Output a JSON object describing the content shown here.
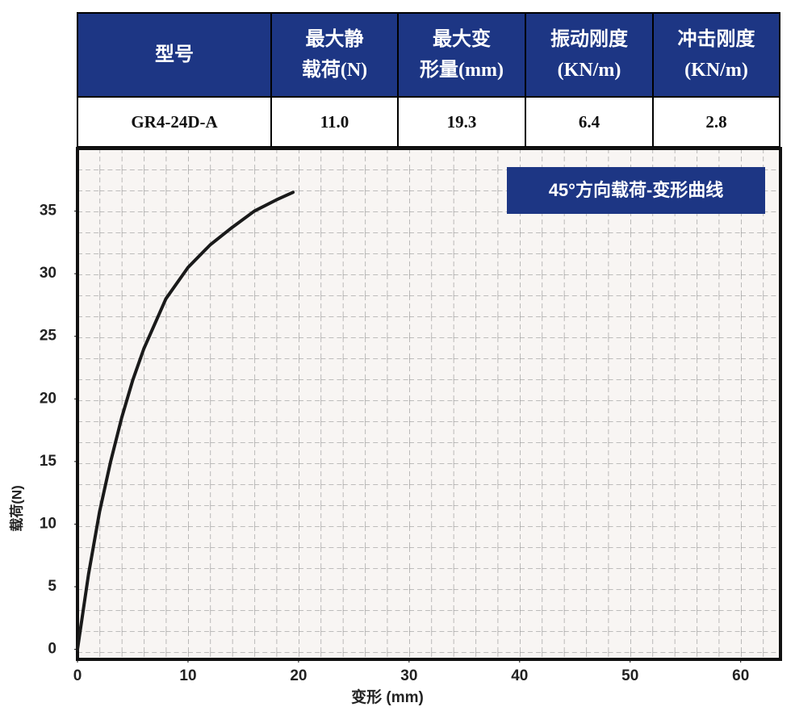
{
  "table": {
    "header": [
      "型号",
      "最大静\n载荷(N)",
      "最大变\n形量(mm)",
      "振动刚度\n(KN/m)",
      "冲击刚度\n(KN/m)"
    ],
    "rows": [
      [
        "GR4-24D-A",
        "11.0",
        "19.3",
        "6.4",
        "2.8"
      ]
    ]
  },
  "chart_data": {
    "type": "line",
    "title": "45°方向载荷-变形曲线",
    "x_label": "变形 (mm)",
    "y_label": "载荷(N)",
    "x": [
      0,
      1,
      2,
      3,
      4,
      5,
      6,
      7,
      8,
      10,
      12,
      14,
      16,
      18,
      19.5
    ],
    "values": [
      0,
      6,
      11,
      15,
      18.5,
      21.5,
      24,
      26,
      28,
      30.5,
      32.3,
      33.7,
      35,
      35.9,
      36.5
    ],
    "color": "#1a1a1a",
    "xlim": [
      0,
      63.6
    ],
    "ylim": [
      -0.8,
      40
    ],
    "xticks": [
      0,
      10,
      20,
      30,
      40,
      50,
      60
    ],
    "yticks": [
      0,
      5,
      10,
      15,
      20,
      25,
      30,
      35
    ]
  }
}
